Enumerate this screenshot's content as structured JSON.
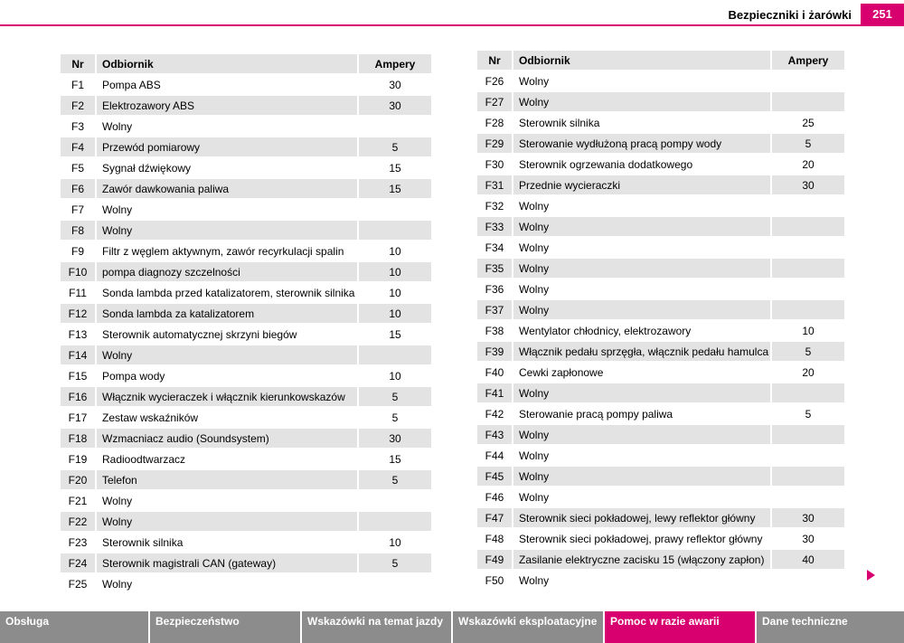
{
  "header": {
    "section_title": "Bezpieczniki i żarówki",
    "page_number": "251",
    "accent_color": "#d8006f"
  },
  "left_table": {
    "headers": {
      "nr": "Nr",
      "name": "Odbiornik",
      "amp": "Ampery"
    },
    "rows": [
      {
        "nr": "F1",
        "name": "Pompa ABS",
        "amp": "30"
      },
      {
        "nr": "F2",
        "name": "Elektrozawory ABS",
        "amp": "30"
      },
      {
        "nr": "F3",
        "name": "Wolny",
        "amp": ""
      },
      {
        "nr": "F4",
        "name": "Przewód pomiarowy",
        "amp": "5"
      },
      {
        "nr": "F5",
        "name": "Sygnał dźwiękowy",
        "amp": "15"
      },
      {
        "nr": "F6",
        "name": "Zawór dawkowania paliwa",
        "amp": "15"
      },
      {
        "nr": "F7",
        "name": "Wolny",
        "amp": ""
      },
      {
        "nr": "F8",
        "name": "Wolny",
        "amp": ""
      },
      {
        "nr": "F9",
        "name": "Filtr z węglem aktywnym, zawór recyrkulacji spalin",
        "amp": "10"
      },
      {
        "nr": "F10",
        "name": "pompa diagnozy szczelności",
        "amp": "10"
      },
      {
        "nr": "F11",
        "name": "Sonda lambda przed katalizatorem, sterownik silnika",
        "amp": "10"
      },
      {
        "nr": "F12",
        "name": "Sonda lambda za katalizatorem",
        "amp": "10"
      },
      {
        "nr": "F13",
        "name": "Sterownik automatycznej skrzyni biegów",
        "amp": "15"
      },
      {
        "nr": "F14",
        "name": "Wolny",
        "amp": ""
      },
      {
        "nr": "F15",
        "name": "Pompa wody",
        "amp": "10"
      },
      {
        "nr": "F16",
        "name": "Włącznik wycieraczek i włącznik kierunkowskazów",
        "amp": "5"
      },
      {
        "nr": "F17",
        "name": "Zestaw wskaźników",
        "amp": "5"
      },
      {
        "nr": "F18",
        "name": "Wzmacniacz audio (Soundsystem)",
        "amp": "30"
      },
      {
        "nr": "F19",
        "name": "Radioodtwarzacz",
        "amp": "15"
      },
      {
        "nr": "F20",
        "name": "Telefon",
        "amp": "5"
      },
      {
        "nr": "F21",
        "name": "Wolny",
        "amp": ""
      },
      {
        "nr": "F22",
        "name": "Wolny",
        "amp": ""
      },
      {
        "nr": "F23",
        "name": "Sterownik silnika",
        "amp": "10"
      },
      {
        "nr": "F24",
        "name": "Sterownik magistrali CAN (gateway)",
        "amp": "5"
      },
      {
        "nr": "F25",
        "name": "Wolny",
        "amp": ""
      }
    ]
  },
  "right_table": {
    "headers": {
      "nr": "Nr",
      "name": "Odbiornik",
      "amp": "Ampery"
    },
    "rows": [
      {
        "nr": "F26",
        "name": "Wolny",
        "amp": ""
      },
      {
        "nr": "F27",
        "name": "Wolny",
        "amp": ""
      },
      {
        "nr": "F28",
        "name": "Sterownik silnika",
        "amp": "25"
      },
      {
        "nr": "F29",
        "name": "Sterowanie wydłużoną pracą pompy wody",
        "amp": "5"
      },
      {
        "nr": "F30",
        "name": "Sterownik ogrzewania dodatkowego",
        "amp": "20"
      },
      {
        "nr": "F31",
        "name": "Przednie wycieraczki",
        "amp": "30"
      },
      {
        "nr": "F32",
        "name": "Wolny",
        "amp": ""
      },
      {
        "nr": "F33",
        "name": "Wolny",
        "amp": ""
      },
      {
        "nr": "F34",
        "name": "Wolny",
        "amp": ""
      },
      {
        "nr": "F35",
        "name": "Wolny",
        "amp": ""
      },
      {
        "nr": "F36",
        "name": "Wolny",
        "amp": ""
      },
      {
        "nr": "F37",
        "name": "Wolny",
        "amp": ""
      },
      {
        "nr": "F38",
        "name": "Wentylator chłodnicy, elektrozawory",
        "amp": "10"
      },
      {
        "nr": "F39",
        "name": "Włącznik pedału sprzęgła, włącznik pedału hamulca",
        "amp": "5"
      },
      {
        "nr": "F40",
        "name": "Cewki zapłonowe",
        "amp": "20"
      },
      {
        "nr": "F41",
        "name": "Wolny",
        "amp": ""
      },
      {
        "nr": "F42",
        "name": "Sterowanie pracą pompy paliwa",
        "amp": "5"
      },
      {
        "nr": "F43",
        "name": "Wolny",
        "amp": ""
      },
      {
        "nr": "F44",
        "name": "Wolny",
        "amp": ""
      },
      {
        "nr": "F45",
        "name": "Wolny",
        "amp": ""
      },
      {
        "nr": "F46",
        "name": "Wolny",
        "amp": ""
      },
      {
        "nr": "F47",
        "name": "Sterownik sieci pokładowej, lewy reflektor główny",
        "amp": "30"
      },
      {
        "nr": "F48",
        "name": "Sterownik sieci pokładowej, prawy reflektor główny",
        "amp": "30"
      },
      {
        "nr": "F49",
        "name": "Zasilanie elektryczne zacisku 15 (włączony zapłon)",
        "amp": "40"
      },
      {
        "nr": "F50",
        "name": "Wolny",
        "amp": ""
      }
    ]
  },
  "next_page_icon": "triangle-right-icon",
  "footer_nav": {
    "tabs": [
      {
        "label": "Obsługa",
        "active": false
      },
      {
        "label": "Bezpieczeństwo",
        "active": false
      },
      {
        "label": "Wskazówki na temat jazdy",
        "active": false
      },
      {
        "label": "Wskazówki eksploatacyjne",
        "active": false
      },
      {
        "label": "Pomoc w razie awarii",
        "active": true
      },
      {
        "label": "Dane techniczne",
        "active": false
      }
    ],
    "tab_color": "#8c8c8c",
    "active_color": "#d8006f"
  }
}
